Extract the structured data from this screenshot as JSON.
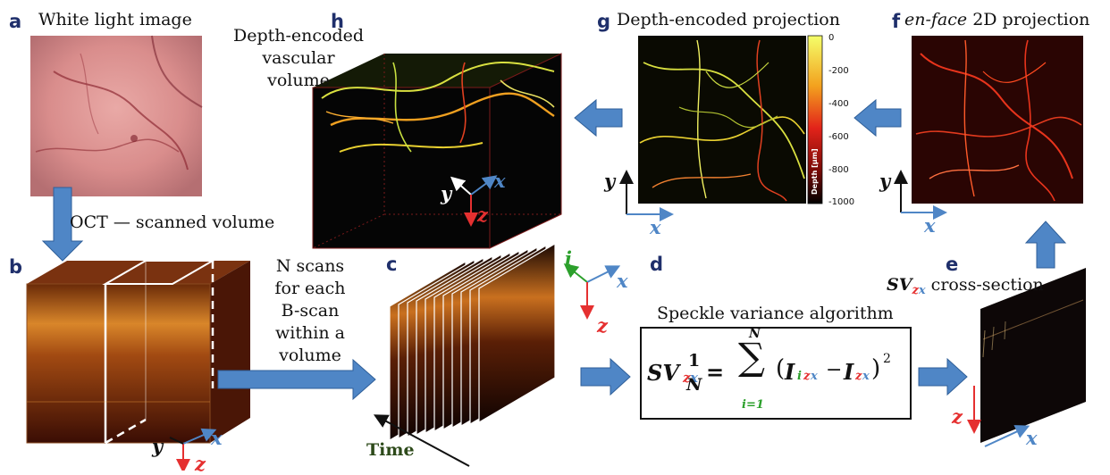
{
  "panels": {
    "a": {
      "letter": "a",
      "caption": "White light image"
    },
    "b": {
      "letter": "b",
      "caption": "OCT — scanned volume"
    },
    "c": {
      "letter": "c",
      "caption_lines": [
        "N scans",
        "for each",
        "B-scan",
        "within a",
        "volume"
      ],
      "time_label": "Time"
    },
    "d": {
      "letter": "d",
      "caption": "Speckle variance algorithm"
    },
    "e": {
      "letter": "e",
      "caption": "cross-section"
    },
    "f": {
      "letter": "f",
      "caption_prefix": "en-face",
      "caption_suffix": " 2D projection"
    },
    "g": {
      "letter": "g",
      "caption": "Depth-encoded projection"
    },
    "h": {
      "letter": "h",
      "caption_lines": [
        "Depth-encoded",
        "vascular",
        "volume"
      ]
    }
  },
  "axes": {
    "x": "x",
    "y": "y",
    "z": "z",
    "i": "i"
  },
  "formula": {
    "lhs": "SV",
    "lhs_sub_z": "z",
    "lhs_sub_x": "x",
    "equals": "=",
    "one": "1",
    "N": "N",
    "sum_top": "N",
    "sum_bottom": "i=1",
    "I": "I",
    "sub_i": "i",
    "sub_z": "z",
    "sub_x": "x",
    "minus": "−",
    "square": "2"
  },
  "colorbar": {
    "label": "Depth [µm]",
    "ticks": [
      "0",
      "-200",
      "-400",
      "-600",
      "-800",
      "-1000"
    ]
  },
  "colors": {
    "label_blue": "#1f2f6b",
    "arrow_blue": "#4f86c6",
    "axis_red": "#e53030",
    "axis_blue": "#4f86c6",
    "axis_green": "#2ca02c"
  }
}
